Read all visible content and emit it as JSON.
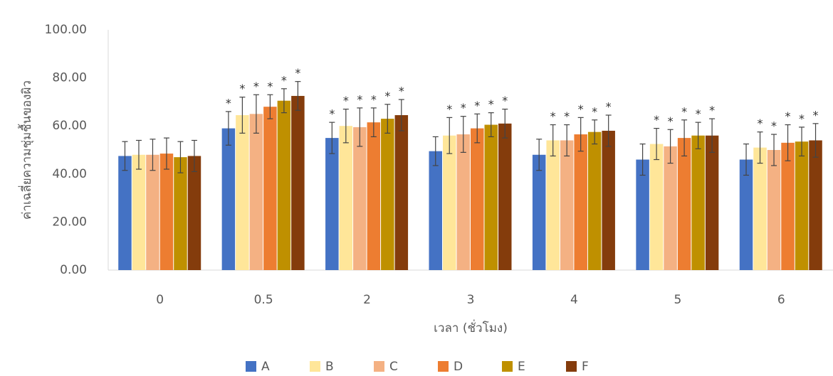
{
  "chart_data": {
    "type": "bar",
    "y_label": "ค่าเฉลี่ยความชุ่มชื้นของผิว",
    "x_label": "เวลา (ชั่วโมง)",
    "categories": [
      "0",
      "0.5",
      "2",
      "3",
      "4",
      "5",
      "6"
    ],
    "ylim": [
      0,
      100
    ],
    "yticks": [
      {
        "value": 0,
        "label": "0.00"
      },
      {
        "value": 20,
        "label": "20.00"
      },
      {
        "value": 40,
        "label": "40.00"
      },
      {
        "value": 60,
        "label": "60.00"
      },
      {
        "value": 80,
        "label": "80.00"
      },
      {
        "value": 100,
        "label": "100.00"
      }
    ],
    "grid": false,
    "legend": "bottom",
    "series": [
      {
        "name": "A",
        "color": "#4472c4",
        "values": [
          47.5,
          59,
          55,
          49.5,
          48,
          46,
          46
        ],
        "errors": [
          6,
          7,
          6.5,
          6,
          6.5,
          6.5,
          6.5
        ],
        "significance": [
          null,
          "*",
          "*",
          null,
          null,
          null,
          null
        ]
      },
      {
        "name": "B",
        "color": "#ffe699",
        "values": [
          48,
          64.5,
          60,
          56,
          54,
          52.5,
          51
        ],
        "errors": [
          6,
          7.5,
          7,
          7.5,
          6.5,
          6.5,
          6.5
        ],
        "significance": [
          null,
          "*",
          "*",
          "*",
          "*",
          "*",
          "*"
        ]
      },
      {
        "name": "C",
        "color": "#f4b183",
        "values": [
          48,
          65,
          59.5,
          56.5,
          54,
          51.5,
          50
        ],
        "errors": [
          6.5,
          8,
          8,
          7.5,
          6.5,
          7,
          6.5
        ],
        "significance": [
          null,
          "*",
          "*",
          "*",
          "*",
          "*",
          "*"
        ]
      },
      {
        "name": "D",
        "color": "#ed7d31",
        "values": [
          48.5,
          68,
          61.5,
          59,
          56.5,
          55,
          53
        ],
        "errors": [
          6.5,
          5,
          6,
          6,
          7,
          7.5,
          7.5
        ],
        "significance": [
          null,
          "*",
          "*",
          "*",
          "*",
          "*",
          "*"
        ]
      },
      {
        "name": "E",
        "color": "#bf9000",
        "values": [
          47,
          70.5,
          63,
          60.5,
          57.5,
          56,
          53.5
        ],
        "errors": [
          6.5,
          5,
          6,
          5,
          5,
          5.5,
          6
        ],
        "significance": [
          null,
          "*",
          "*",
          "*",
          "*",
          "*",
          "*"
        ]
      },
      {
        "name": "F",
        "color": "#843c0c",
        "values": [
          47.5,
          72.5,
          64.5,
          61,
          58,
          56,
          54
        ],
        "errors": [
          6.5,
          6,
          6.5,
          6,
          6.5,
          7,
          7
        ],
        "significance": [
          null,
          "*",
          "*",
          "*",
          "*",
          "*",
          "*"
        ]
      }
    ]
  }
}
